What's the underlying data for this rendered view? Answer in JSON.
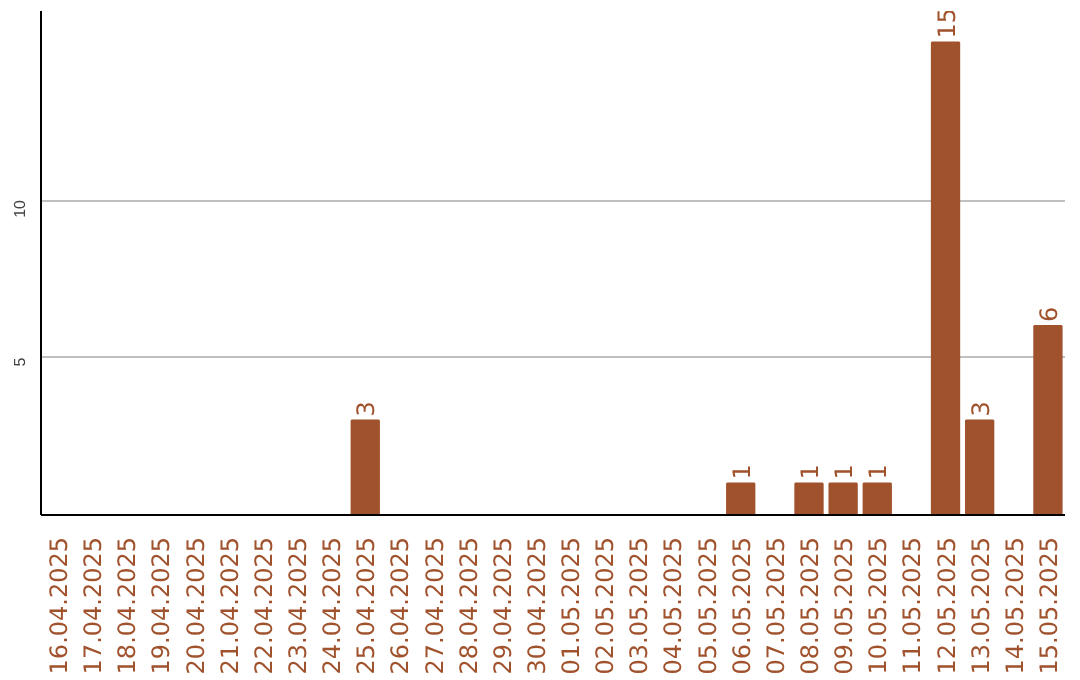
{
  "chart_data": {
    "type": "bar",
    "categories": [
      "16.04.2025",
      "17.04.2025",
      "18.04.2025",
      "19.04.2025",
      "20.04.2025",
      "21.04.2025",
      "22.04.2025",
      "23.04.2025",
      "24.04.2025",
      "25.04.2025",
      "26.04.2025",
      "27.04.2025",
      "28.04.2025",
      "29.04.2025",
      "30.04.2025",
      "01.05.2025",
      "02.05.2025",
      "03.05.2025",
      "04.05.2025",
      "05.05.2025",
      "06.05.2025",
      "07.05.2025",
      "08.05.2025",
      "09.05.2025",
      "10.05.2025",
      "11.05.2025",
      "12.05.2025",
      "13.05.2025",
      "14.05.2025",
      "15.05.2025"
    ],
    "values": [
      0,
      0,
      0,
      0,
      0,
      0,
      0,
      0,
      0,
      3,
      0,
      0,
      0,
      0,
      0,
      0,
      0,
      0,
      0,
      0,
      1,
      0,
      1,
      1,
      1,
      0,
      15,
      3,
      0,
      6
    ],
    "value_labels": [
      null,
      null,
      null,
      null,
      null,
      null,
      null,
      null,
      null,
      "3",
      null,
      null,
      null,
      null,
      null,
      null,
      null,
      null,
      null,
      null,
      "1",
      null,
      "1",
      "1",
      "1",
      null,
      "15",
      "3",
      null,
      "6"
    ],
    "color": "#a0522d",
    "ylim": [
      0,
      16
    ],
    "yticks": [
      5,
      10
    ],
    "grid": "y"
  }
}
